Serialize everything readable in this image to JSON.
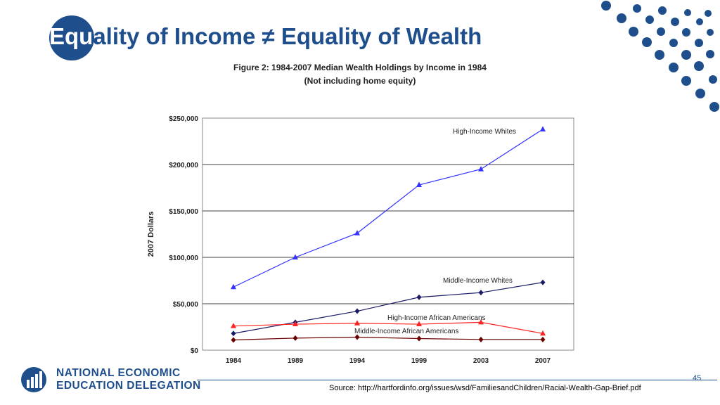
{
  "slide": {
    "title_lead": "Equ",
    "title_rest": "ality of Income ≠ Equality of Wealth",
    "source": "Source: http://hartfordinfo.org/issues/wsd/FamiliesandChildren/Racial-Wealth-Gap-Brief.pdf",
    "page_number": "45",
    "logo_line1": "NATIONAL ECONOMIC",
    "logo_line2": "EDUCATION DELEGATION",
    "brand_color": "#1f4e8c"
  },
  "chart_data": {
    "type": "line",
    "title": "Figure 2: 1984-2007 Median Wealth Holdings by Income in 1984",
    "subtitle": "(Not including home equity)",
    "xlabel": "",
    "ylabel": "2007 Dollars",
    "categories": [
      "1984",
      "1989",
      "1994",
      "1999",
      "2003",
      "2007"
    ],
    "yticks": [
      "$0",
      "$50,000",
      "$100,000",
      "$150,000",
      "$200,000",
      "$250,000"
    ],
    "ylim": [
      0,
      250000
    ],
    "grid": true,
    "legend": "inline labels",
    "series": [
      {
        "name": "High-Income Whites",
        "values": [
          68000,
          100000,
          126000,
          178000,
          195000,
          238000
        ],
        "color": "#3333ff",
        "marker": "triangle"
      },
      {
        "name": "Middle-Income Whites",
        "values": [
          18000,
          30000,
          42000,
          57000,
          62000,
          73000
        ],
        "color": "#1a1a66",
        "marker": "diamond"
      },
      {
        "name": "High-Income African Americans",
        "values": [
          26000,
          28000,
          29000,
          28000,
          30000,
          18000
        ],
        "color": "#ff2222",
        "marker": "triangle"
      },
      {
        "name": "Middle-Income African Americans",
        "values": [
          11000,
          13000,
          14000,
          12500,
          11500,
          11500
        ],
        "color": "#6b0000",
        "marker": "diamond"
      }
    ]
  }
}
